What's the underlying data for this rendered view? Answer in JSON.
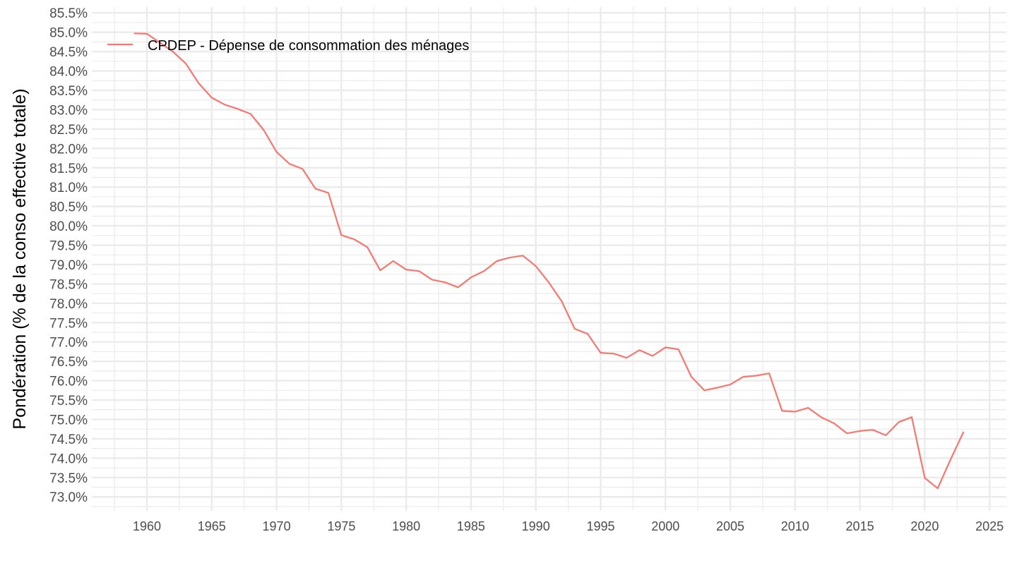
{
  "chart_data": {
    "type": "line",
    "title": "",
    "xlabel": "",
    "ylabel": "Pondération (% de la conso effective totale)",
    "xlim": [
      1955.75,
      2026.3
    ],
    "ylim": [
      72.64,
      85.65
    ],
    "x_ticks": [
      1960,
      1965,
      1970,
      1975,
      1980,
      1985,
      1990,
      1995,
      2000,
      2005,
      2010,
      2015,
      2020,
      2025
    ],
    "y_ticks": [
      73.0,
      73.5,
      74.0,
      74.5,
      75.0,
      75.5,
      76.0,
      76.5,
      77.0,
      77.5,
      78.0,
      78.5,
      79.0,
      79.5,
      80.0,
      80.5,
      81.0,
      81.5,
      82.0,
      82.5,
      83.0,
      83.5,
      84.0,
      84.5,
      85.0,
      85.5
    ],
    "grid": true,
    "legend_position": "top-left",
    "series": [
      {
        "name": "CPDEP - Dépense de consommation des ménages",
        "color": "#F8766D",
        "x": [
          1959,
          1960,
          1961,
          1962,
          1963,
          1964,
          1965,
          1966,
          1967,
          1968,
          1969,
          1970,
          1971,
          1972,
          1973,
          1974,
          1975,
          1976,
          1977,
          1978,
          1979,
          1980,
          1981,
          1982,
          1983,
          1984,
          1985,
          1986,
          1987,
          1988,
          1989,
          1990,
          1991,
          1992,
          1993,
          1994,
          1995,
          1996,
          1997,
          1998,
          1999,
          2000,
          2001,
          2002,
          2003,
          2004,
          2005,
          2006,
          2007,
          2008,
          2009,
          2010,
          2011,
          2012,
          2013,
          2014,
          2015,
          2016,
          2017,
          2018,
          2019,
          2020,
          2021,
          2022,
          2023
        ],
        "values": [
          84.97,
          84.96,
          84.73,
          84.5,
          84.19,
          83.68,
          83.31,
          83.13,
          83.02,
          82.89,
          82.48,
          81.91,
          81.6,
          81.47,
          80.96,
          80.85,
          79.76,
          79.65,
          79.45,
          78.85,
          79.09,
          78.87,
          78.83,
          78.61,
          78.54,
          78.41,
          78.67,
          78.83,
          79.09,
          79.18,
          79.23,
          78.96,
          78.54,
          78.05,
          77.34,
          77.21,
          76.72,
          76.7,
          76.59,
          76.79,
          76.64,
          76.86,
          76.81,
          76.1,
          75.75,
          75.82,
          75.9,
          76.1,
          76.13,
          76.19,
          75.22,
          75.2,
          75.3,
          75.06,
          74.9,
          74.64,
          74.7,
          74.73,
          74.59,
          74.93,
          75.06,
          73.49,
          73.22,
          73.97,
          74.68
        ]
      }
    ]
  }
}
